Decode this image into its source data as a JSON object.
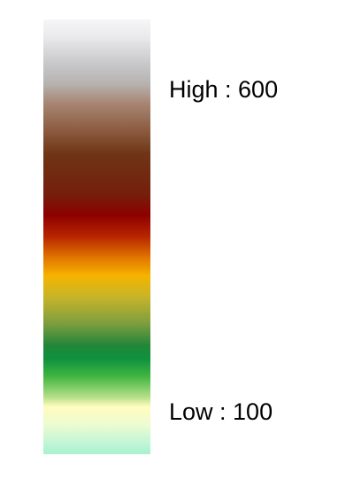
{
  "legend": {
    "high_label": "High : 600",
    "low_label": "Low : 100",
    "high_value": 600,
    "low_value": 100,
    "ramp_colors_top_to_bottom": [
      "#f6f6f8",
      "#c9c9cc",
      "#a98876",
      "#6f3416",
      "#8d0000",
      "#e27900",
      "#f6b400",
      "#7d9d3e",
      "#0f913e",
      "#3fb540",
      "#fffcbf",
      "#a7f1d0"
    ]
  }
}
